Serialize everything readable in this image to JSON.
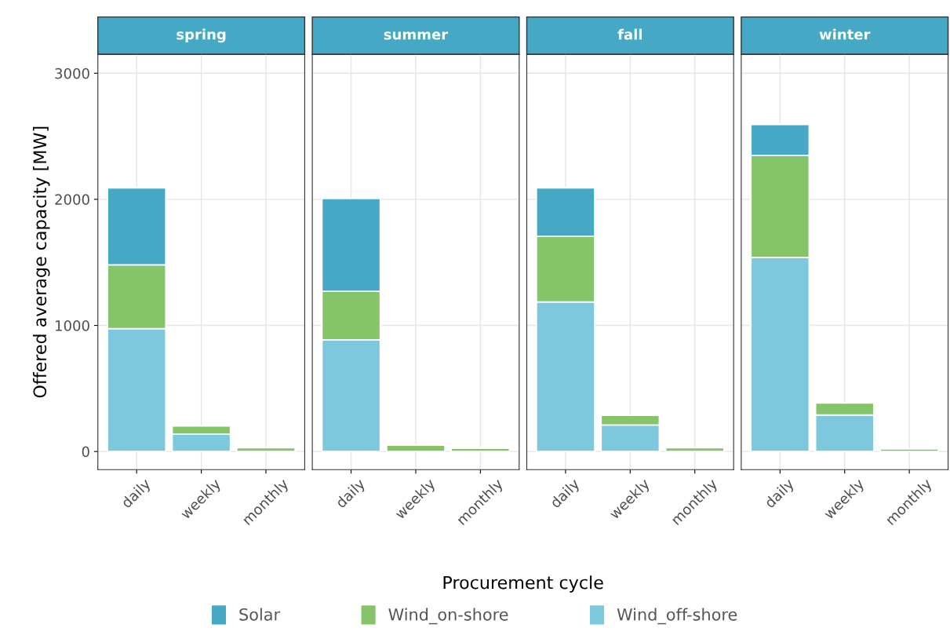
{
  "chart_data": [
    {
      "type": "bar",
      "stacked": true,
      "title": "spring",
      "ylabel": "Offered average capacity [MW]",
      "categories": [
        "daily",
        "weekly",
        "monthly"
      ],
      "ylim": [
        -144,
        3150
      ],
      "yticks": [
        0,
        1000,
        2000,
        3000
      ],
      "grid": true,
      "legend": "bottom",
      "series": [
        {
          "name": "Wind_off-shore",
          "color": "#7ec8dd",
          "values": [
            975,
            138,
            null
          ]
        },
        {
          "name": "Wind_on-shore",
          "color": "#86c46a",
          "values": [
            505,
            65,
            30
          ]
        },
        {
          "name": "Solar",
          "color": "#45a9c6",
          "values": [
            610,
            null,
            null
          ]
        }
      ]
    },
    {
      "type": "bar",
      "stacked": true,
      "title": "summer",
      "xlabel": "Procurement cycle",
      "categories": [
        "daily",
        "weekly",
        "monthly"
      ],
      "ylim": [
        -144,
        3150
      ],
      "yticks": [
        0,
        1000,
        2000,
        3000
      ],
      "grid": true,
      "tick_labels": "x",
      "series": [
        {
          "color": "#7ec8dd",
          "values": [
            886,
            null,
            null
          ]
        },
        {
          "color": "#86c46a",
          "values": [
            384,
            50,
            25
          ]
        },
        {
          "color": "#45a9c6",
          "values": [
            736,
            null,
            null
          ]
        }
      ]
    },
    {
      "type": "bar",
      "stacked": true,
      "title": "fall",
      "categories": [
        "daily",
        "weekly",
        "monthly"
      ],
      "ylim": [
        -144,
        3150
      ],
      "yticks": [
        0,
        1000,
        2000,
        3000
      ],
      "grid": true,
      "tick_labels": "x",
      "series": [
        {
          "color": "#7ec8dd",
          "values": [
            1186,
            210,
            null
          ]
        },
        {
          "color": "#86c46a",
          "values": [
            521,
            77,
            30
          ]
        },
        {
          "color": "#45a9c6",
          "values": [
            383,
            null,
            null
          ]
        }
      ]
    },
    {
      "type": "bar",
      "stacked": true,
      "title": "winter",
      "categories": [
        "daily",
        "weekly",
        "monthly"
      ],
      "ylim": [
        -144,
        3150
      ],
      "yticks": [
        0,
        1000,
        2000,
        3000
      ],
      "grid": true,
      "tick_labels": "x",
      "series": [
        {
          "color": "#7ec8dd",
          "values": [
            1539,
            290,
            null
          ]
        },
        {
          "color": "#86c46a",
          "values": [
            808,
            95,
            20
          ]
        },
        {
          "color": "#45a9c6",
          "values": [
            246,
            null,
            null
          ]
        }
      ]
    }
  ]
}
